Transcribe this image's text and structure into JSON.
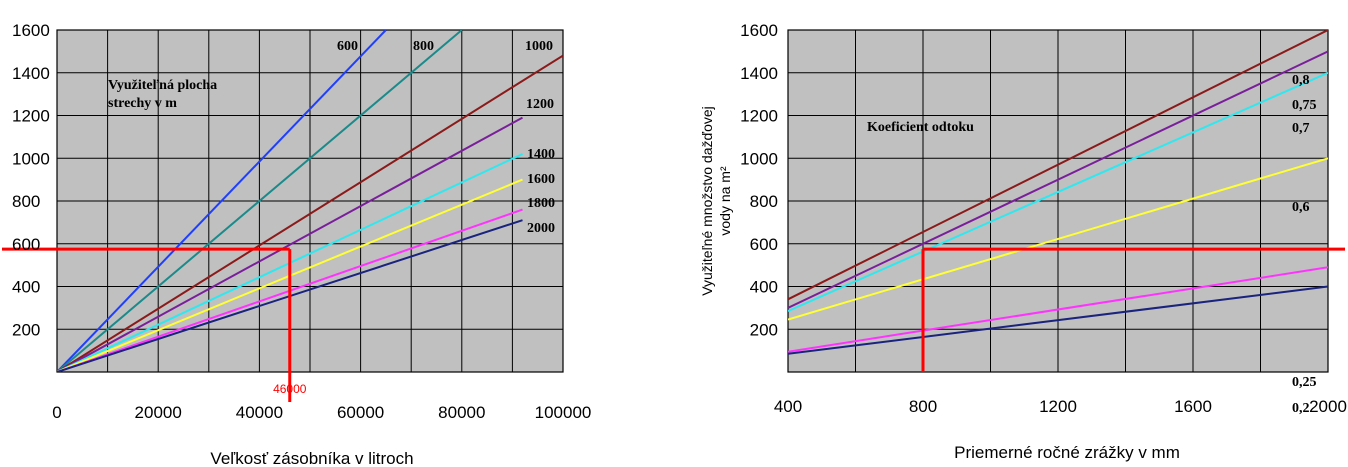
{
  "chart_data": [
    {
      "type": "line",
      "xlabel": "Veľkosť zásobníka v litroch",
      "ylabel": "",
      "xlim": [
        0,
        100000
      ],
      "ylim": [
        0,
        1600
      ],
      "x_ticks": [
        "0",
        "20000",
        "40000",
        "60000",
        "80000",
        "100000"
      ],
      "y_ticks": [
        "200",
        "400",
        "600",
        "800",
        "1000",
        "1200",
        "1400",
        "1600"
      ],
      "grid": true,
      "background": "#c0c0c0",
      "legend_title": "Využiteľná plocha strechy v m",
      "annotation_text": "46000",
      "annotation": {
        "x": 46000,
        "y": 575,
        "color": "#ff0000"
      },
      "series": [
        {
          "name": "600",
          "color": "#1f3fff",
          "x": [
            0,
            65000
          ],
          "y": [
            0,
            1600
          ]
        },
        {
          "name": "800",
          "color": "#1a8a8a",
          "x": [
            0,
            80000
          ],
          "y": [
            0,
            1600
          ]
        },
        {
          "name": "1000",
          "color": "#8b1a1a",
          "x": [
            0,
            100000
          ],
          "y": [
            0,
            1480
          ]
        },
        {
          "name": "1200",
          "color": "#7a1f9a",
          "x": [
            0,
            92000
          ],
          "y": [
            0,
            1190
          ]
        },
        {
          "name": "1400",
          "color": "#2ee8f0",
          "x": [
            0,
            92000
          ],
          "y": [
            0,
            1020
          ]
        },
        {
          "name": "1600",
          "color": "#ffff33",
          "x": [
            0,
            92000
          ],
          "y": [
            0,
            900
          ]
        },
        {
          "name": "1800",
          "color": "#ff33ff",
          "x": [
            0,
            92000
          ],
          "y": [
            0,
            760
          ]
        },
        {
          "name": "2000",
          "color": "#1a237e",
          "x": [
            0,
            92000
          ],
          "y": [
            0,
            710
          ]
        }
      ]
    },
    {
      "type": "line",
      "xlabel": "Priemerné ročné zrážky v mm",
      "ylabel_line1": "Využiteľné množstvo dažďovej",
      "ylabel_line2": "vody na m²",
      "xlim": [
        400,
        2000
      ],
      "ylim": [
        0,
        1600
      ],
      "x_ticks": [
        "400",
        "800",
        "1200",
        "1600",
        "2000"
      ],
      "y_ticks": [
        "200",
        "400",
        "600",
        "800",
        "1000",
        "1200",
        "1400",
        "1600"
      ],
      "grid": true,
      "background": "#c0c0c0",
      "legend_title": "Koeficient odtoku",
      "annotation": {
        "x": 800,
        "y": 575,
        "color": "#ff0000"
      },
      "series": [
        {
          "name": "0,8",
          "color": "#8b1a1a",
          "x": [
            400,
            2000
          ],
          "y": [
            340,
            1600
          ]
        },
        {
          "name": "0,75",
          "color": "#7a1f9a",
          "x": [
            400,
            2000
          ],
          "y": [
            300,
            1500
          ]
        },
        {
          "name": "0,7",
          "color": "#2ee8f0",
          "x": [
            400,
            2000
          ],
          "y": [
            285,
            1400
          ]
        },
        {
          "name": "0,6",
          "color": "#ffff33",
          "x": [
            400,
            2000
          ],
          "y": [
            245,
            1000
          ]
        },
        {
          "name": "0,25",
          "color": "#ff33ff",
          "x": [
            400,
            2000
          ],
          "y": [
            95,
            490
          ]
        },
        {
          "name": "0,2",
          "color": "#1a237e",
          "x": [
            400,
            2000
          ],
          "y": [
            85,
            400
          ]
        }
      ]
    }
  ]
}
